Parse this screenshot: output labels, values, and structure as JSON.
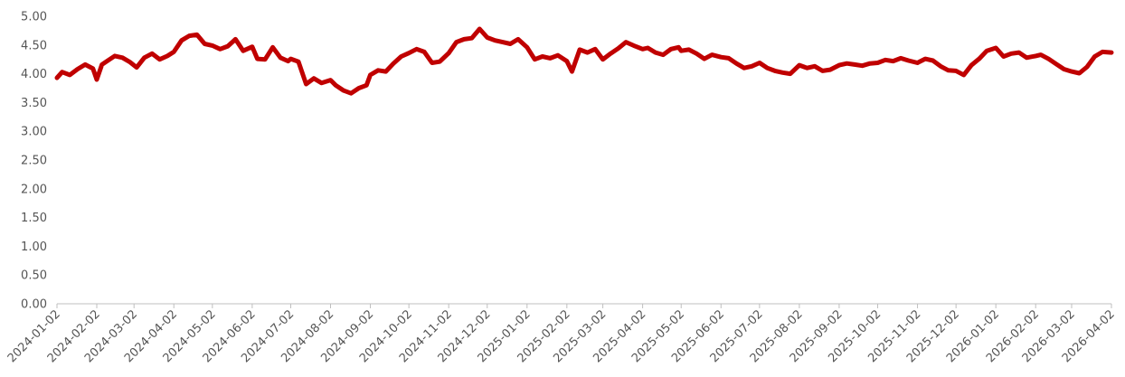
{
  "chart_data": {
    "type": "line",
    "title": "",
    "xlabel": "",
    "ylabel": "",
    "ylim": [
      0,
      5
    ],
    "grid": false,
    "legend": "none",
    "line_color": "#c00000",
    "y_ticks": [
      "0.00",
      "0.50",
      "1.00",
      "1.50",
      "2.00",
      "2.50",
      "3.00",
      "3.50",
      "4.00",
      "4.50",
      "5.00"
    ],
    "x_ticks": [
      "2024-01-02",
      "2024-02-02",
      "2024-03-02",
      "2024-04-02",
      "2024-05-02",
      "2024-06-02",
      "2024-07-02",
      "2024-08-02",
      "2024-09-02",
      "2024-10-02",
      "2024-11-02",
      "2024-12-02",
      "2025-01-02",
      "2025-02-02",
      "2025-03-02",
      "2025-04-02",
      "2025-05-02",
      "2025-06-02",
      "2025-07-02",
      "2025-08-02",
      "2025-09-02",
      "2025-10-02",
      "2025-11-02",
      "2025-12-02",
      "2026-01-02",
      "2026-02-02",
      "2026-03-02",
      "2026-04-02"
    ],
    "series": [
      {
        "x": [
          "2024-01-02",
          "2024-01-06",
          "2024-01-12",
          "2024-01-18",
          "2024-01-24",
          "2024-01-30",
          "2024-02-02",
          "2024-02-06",
          "2024-02-10",
          "2024-02-16",
          "2024-02-22",
          "2024-02-28",
          "2024-03-04",
          "2024-03-10",
          "2024-03-16",
          "2024-03-22",
          "2024-03-28",
          "2024-04-02",
          "2024-04-08",
          "2024-04-14",
          "2024-04-20",
          "2024-04-26",
          "2024-05-02",
          "2024-05-08",
          "2024-05-14",
          "2024-05-20",
          "2024-05-26",
          "2024-06-02",
          "2024-06-06",
          "2024-06-12",
          "2024-06-18",
          "2024-06-24",
          "2024-06-30",
          "2024-07-02",
          "2024-07-08",
          "2024-07-14",
          "2024-07-20",
          "2024-07-26",
          "2024-08-02",
          "2024-08-06",
          "2024-08-12",
          "2024-08-18",
          "2024-08-24",
          "2024-08-30",
          "2024-09-02",
          "2024-09-08",
          "2024-09-14",
          "2024-09-20",
          "2024-09-26",
          "2024-10-02",
          "2024-10-08",
          "2024-10-14",
          "2024-10-20",
          "2024-10-26",
          "2024-11-02",
          "2024-11-08",
          "2024-11-14",
          "2024-11-20",
          "2024-11-26",
          "2024-12-02",
          "2024-12-08",
          "2024-12-14",
          "2024-12-20",
          "2024-12-26",
          "2025-01-02",
          "2025-01-08",
          "2025-01-14",
          "2025-01-20",
          "2025-01-26",
          "2025-02-02",
          "2025-02-06",
          "2025-02-12",
          "2025-02-18",
          "2025-02-24",
          "2025-03-02",
          "2025-03-08",
          "2025-03-14",
          "2025-03-20",
          "2025-03-26",
          "2025-04-02",
          "2025-04-06",
          "2025-04-12",
          "2025-04-18",
          "2025-04-24",
          "2025-04-30",
          "2025-05-02",
          "2025-05-08",
          "2025-05-14",
          "2025-05-20",
          "2025-05-26",
          "2025-06-02",
          "2025-06-08",
          "2025-06-14",
          "2025-06-20",
          "2025-06-26",
          "2025-07-02",
          "2025-07-08",
          "2025-07-14",
          "2025-07-20",
          "2025-07-26",
          "2025-08-02",
          "2025-08-08",
          "2025-08-14",
          "2025-08-20",
          "2025-08-26",
          "2025-09-02",
          "2025-09-08",
          "2025-09-14",
          "2025-09-20",
          "2025-09-26",
          "2025-10-02",
          "2025-10-08",
          "2025-10-14",
          "2025-10-20",
          "2025-10-26",
          "2025-11-02",
          "2025-11-08",
          "2025-11-14",
          "2025-11-20",
          "2025-11-26",
          "2025-12-02",
          "2025-12-08",
          "2025-12-14",
          "2025-12-20",
          "2025-12-26",
          "2026-01-02",
          "2026-01-08",
          "2026-01-14",
          "2026-01-20",
          "2026-01-26",
          "2026-02-02",
          "2026-02-06",
          "2026-02-12",
          "2026-02-18",
          "2026-02-24",
          "2026-03-02",
          "2026-03-08",
          "2026-03-14",
          "2026-03-20",
          "2026-03-26",
          "2026-04-02"
        ],
        "values": [
          3.93,
          4.03,
          3.98,
          4.08,
          4.16,
          4.09,
          3.9,
          4.16,
          4.22,
          4.31,
          4.28,
          4.2,
          4.11,
          4.28,
          4.35,
          4.25,
          4.31,
          4.38,
          4.58,
          4.66,
          4.68,
          4.52,
          4.49,
          4.43,
          4.48,
          4.6,
          4.4,
          4.47,
          4.26,
          4.25,
          4.46,
          4.28,
          4.22,
          4.26,
          4.21,
          3.82,
          3.92,
          3.84,
          3.89,
          3.8,
          3.71,
          3.66,
          3.75,
          3.8,
          3.98,
          4.06,
          4.04,
          4.18,
          4.3,
          4.36,
          4.43,
          4.38,
          4.19,
          4.21,
          4.36,
          4.55,
          4.6,
          4.62,
          4.78,
          4.63,
          4.58,
          4.55,
          4.52,
          4.6,
          4.46,
          4.25,
          4.3,
          4.27,
          4.32,
          4.22,
          4.04,
          4.42,
          4.37,
          4.43,
          4.25,
          4.35,
          4.44,
          4.55,
          4.49,
          4.43,
          4.45,
          4.37,
          4.33,
          4.43,
          4.46,
          4.4,
          4.42,
          4.35,
          4.26,
          4.33,
          4.29,
          4.27,
          4.18,
          4.1,
          4.13,
          4.19,
          4.1,
          4.05,
          4.02,
          4.0,
          4.15,
          4.1,
          4.13,
          4.05,
          4.07,
          4.15,
          4.18,
          4.16,
          4.14,
          4.18,
          4.19,
          4.24,
          4.22,
          4.27,
          4.23,
          4.19,
          4.26,
          4.23,
          4.13,
          4.06,
          4.05,
          3.98,
          4.15,
          4.26,
          4.4,
          4.45,
          4.3,
          4.35,
          4.37,
          4.28,
          4.31,
          4.33,
          4.26,
          4.17,
          4.08,
          4.04,
          4.01,
          4.12,
          4.3,
          4.38,
          4.37
        ]
      }
    ]
  }
}
